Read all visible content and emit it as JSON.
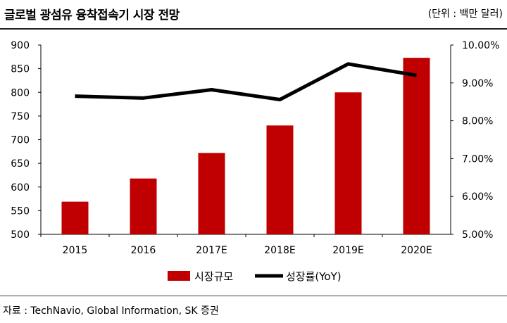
{
  "header": {
    "title": "글로벌 광섬유 융착접속기 시장 전망",
    "unit": "(단위 : 백만 달러)"
  },
  "footer": {
    "source": "자료 : TechNavio, Global Information,  SK 증권"
  },
  "chart_data": {
    "type": "bar",
    "categories": [
      "2015",
      "2016",
      "2017E",
      "2018E",
      "2019E",
      "2020E"
    ],
    "series": [
      {
        "name": "시장규모",
        "type": "bar",
        "axis": "left",
        "color": "#c00000",
        "values": [
          569,
          618,
          672,
          730,
          800,
          873
        ]
      },
      {
        "name": "성장률(YoY)",
        "type": "line",
        "axis": "right",
        "color": "#000000",
        "values": [
          8.65,
          8.6,
          8.82,
          8.56,
          9.5,
          9.2
        ]
      }
    ],
    "y_left": {
      "ylim": [
        500,
        900
      ],
      "ticks": [
        "500",
        "550",
        "600",
        "650",
        "700",
        "750",
        "800",
        "850",
        "900"
      ]
    },
    "y_right": {
      "ylim": [
        5,
        10
      ],
      "ticks": [
        "5.00%",
        "6.00%",
        "7.00%",
        "8.00%",
        "9.00%",
        "10.00%"
      ]
    },
    "grid": false,
    "legend_position": "bottom"
  }
}
